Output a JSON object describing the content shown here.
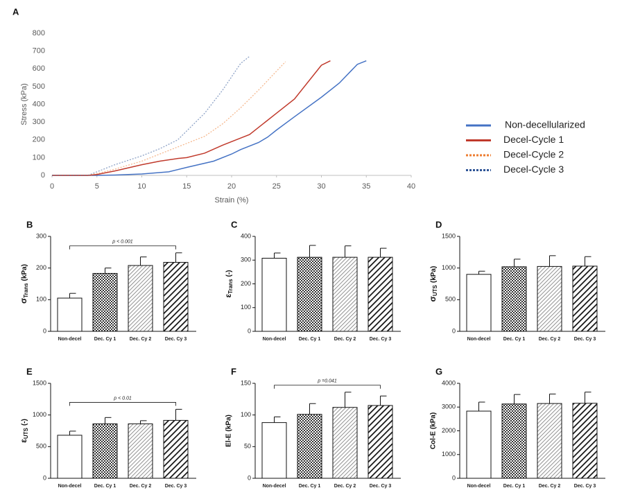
{
  "chart_data": [
    {
      "type": "line",
      "panel_label": "A",
      "xlabel": "Strain (%)",
      "ylabel": "Stress (kPa)",
      "xlim": [
        0,
        40
      ],
      "xticks": [
        0,
        5,
        10,
        15,
        20,
        25,
        30,
        35,
        40
      ],
      "ylim": [
        0,
        800
      ],
      "yticks": [
        0,
        100,
        200,
        300,
        400,
        500,
        600,
        700,
        800
      ],
      "legend": "right",
      "grid": false,
      "series": [
        {
          "name": "Non-decellularized",
          "color": "#4472c4",
          "dash": "solid",
          "x": [
            0,
            5,
            7,
            10,
            13,
            15,
            18,
            20,
            21,
            23,
            24,
            25,
            27,
            30,
            32,
            34,
            35
          ],
          "values": [
            0,
            0,
            2,
            8,
            20,
            45,
            80,
            120,
            145,
            185,
            215,
            255,
            330,
            440,
            520,
            625,
            645
          ]
        },
        {
          "name": "Decel-Cycle 1",
          "color": "#c0392b",
          "dash": "solid",
          "x": [
            0,
            4,
            5,
            7,
            10,
            12,
            14,
            15,
            17,
            19,
            21,
            22,
            23,
            25,
            27,
            30,
            31
          ],
          "values": [
            0,
            0,
            5,
            25,
            60,
            80,
            95,
            100,
            125,
            170,
            210,
            230,
            270,
            350,
            430,
            620,
            645
          ]
        },
        {
          "name": "Decel-Cycle 2",
          "color": "#ed7d31",
          "dash": "dotted",
          "x": [
            0,
            4,
            5,
            7,
            10,
            12,
            14,
            16,
            17,
            19,
            21,
            23,
            26
          ],
          "values": [
            0,
            0,
            10,
            35,
            80,
            120,
            160,
            200,
            220,
            290,
            380,
            480,
            640
          ]
        },
        {
          "name": "Decel-Cycle 3",
          "color": "#2f5597",
          "dash": "dotted",
          "x": [
            0,
            4,
            5,
            7,
            10,
            12,
            14,
            16,
            17,
            19,
            21,
            22
          ],
          "values": [
            0,
            0,
            20,
            60,
            110,
            150,
            200,
            300,
            350,
            480,
            630,
            670
          ]
        }
      ]
    },
    {
      "type": "bar",
      "panel_label": "B",
      "ylabel": {
        "symbol": "σ",
        "sub": "Trans",
        "unit": "(kPa)"
      },
      "categories": [
        "Non-decel",
        "Dec. Cy 1",
        "Dec. Cy 2",
        "Dec. Cy 3"
      ],
      "values": [
        105,
        183,
        208,
        218
      ],
      "errors": [
        15,
        17,
        27,
        30
      ],
      "fills": [
        "white",
        "crosshatch",
        "hatch-light",
        "hatch-bold"
      ],
      "ylim": [
        0,
        300
      ],
      "yticks": [
        0,
        100,
        200,
        300
      ],
      "annotation": "p < 0.001"
    },
    {
      "type": "bar",
      "panel_label": "C",
      "ylabel": {
        "symbol": "ε",
        "sub": "Trans",
        "unit": "(-)"
      },
      "categories": [
        "Non-decel",
        "Dec. Cy 1",
        "Dec. Cy 2",
        "Dec. Cy 3"
      ],
      "values": [
        308,
        312,
        312,
        312
      ],
      "errors": [
        22,
        50,
        48,
        38
      ],
      "fills": [
        "white",
        "crosshatch",
        "hatch-light",
        "hatch-bold"
      ],
      "ylim": [
        0,
        400
      ],
      "yticks": [
        0,
        100,
        200,
        300,
        400
      ]
    },
    {
      "type": "bar",
      "panel_label": "D",
      "ylabel": {
        "symbol": "σ",
        "sub": "UTS",
        "unit": "(kPa)"
      },
      "categories": [
        "Non-decel",
        "Dec. Cy 1",
        "Dec. Cy 2",
        "Dec. Cy 3"
      ],
      "values": [
        900,
        1020,
        1025,
        1030
      ],
      "errors": [
        50,
        120,
        170,
        150
      ],
      "fills": [
        "white",
        "crosshatch",
        "hatch-light",
        "hatch-bold"
      ],
      "ylim": [
        0,
        1500
      ],
      "yticks": [
        0,
        500,
        1000,
        1500
      ]
    },
    {
      "type": "bar",
      "panel_label": "E",
      "ylabel": {
        "symbol": "ε",
        "sub": "UTS",
        "unit": "(-)"
      },
      "categories": [
        "Non-decel",
        "Dec. Cy 1",
        "Dec. Cy 2",
        "Dec. Cy 3"
      ],
      "values": [
        680,
        860,
        860,
        915
      ],
      "errors": [
        65,
        100,
        50,
        175
      ],
      "fills": [
        "white",
        "crosshatch",
        "hatch-light",
        "hatch-bold"
      ],
      "ylim": [
        0,
        1500
      ],
      "yticks": [
        0,
        500,
        1000,
        1500
      ],
      "annotation": "p < 0.01"
    },
    {
      "type": "bar",
      "panel_label": "F",
      "ylabel": "El-E (kPa)",
      "categories": [
        "Non-decel",
        "Dec. Cy 1",
        "Dec. Cy 2",
        "Dec. Cy 3"
      ],
      "values": [
        88,
        101,
        112,
        115
      ],
      "errors": [
        9,
        17,
        24,
        15
      ],
      "fills": [
        "white",
        "crosshatch",
        "hatch-light",
        "hatch-bold"
      ],
      "ylim": [
        0,
        150
      ],
      "yticks": [
        0,
        50,
        100,
        150
      ],
      "annotation": "p =0.041"
    },
    {
      "type": "bar",
      "panel_label": "G",
      "ylabel": "Col-E (kPa)",
      "categories": [
        "Non-decel",
        "Dec. Cy 1",
        "Dec. Cy 2",
        "Dec. Cy 3"
      ],
      "values": [
        2830,
        3130,
        3150,
        3160
      ],
      "errors": [
        380,
        400,
        400,
        470
      ],
      "fills": [
        "white",
        "crosshatch",
        "hatch-light",
        "hatch-bold"
      ],
      "ylim": [
        0,
        4000
      ],
      "yticks": [
        0,
        1000,
        2000,
        3000,
        4000
      ]
    }
  ]
}
